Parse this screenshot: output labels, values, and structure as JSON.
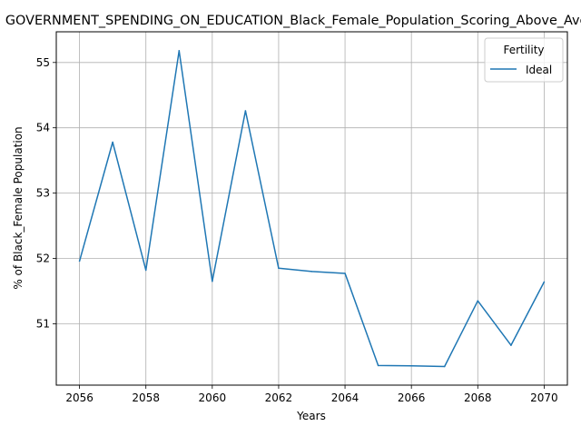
{
  "chart_data": {
    "type": "line",
    "title": "GOVERNMENT_SPENDING_ON_EDUCATION_Black_Female_Population_Scoring_Above_Average",
    "xlabel": "Years",
    "ylabel": "% of Black_Female Population",
    "x": [
      2056,
      2057,
      2058,
      2059,
      2060,
      2061,
      2062,
      2063,
      2064,
      2065,
      2066,
      2067,
      2068,
      2069,
      2070
    ],
    "series": [
      {
        "name": "Ideal",
        "color": "#1f77b4",
        "values": [
          51.96,
          53.78,
          51.82,
          55.18,
          51.65,
          54.26,
          51.85,
          51.8,
          51.77,
          50.36,
          50.355,
          50.345,
          51.35,
          50.67,
          51.64
        ]
      }
    ],
    "xlim": [
      2055.3,
      2070.7
    ],
    "ylim": [
      50.06,
      55.47
    ],
    "xticks": [
      2056,
      2058,
      2060,
      2062,
      2064,
      2066,
      2068,
      2070
    ],
    "yticks": [
      51,
      52,
      53,
      54,
      55
    ],
    "grid": true,
    "legend": {
      "title": "Fertility",
      "position": "top-right"
    },
    "colors": {
      "line": "#1f77b4",
      "grid": "#b0b0b0",
      "axes": "#000000"
    }
  }
}
